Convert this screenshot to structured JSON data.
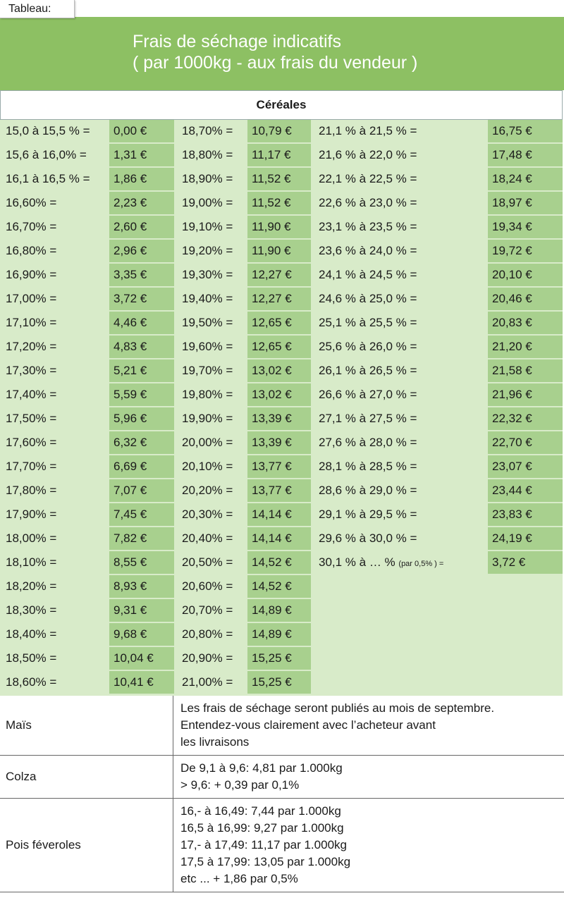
{
  "tag": "Tableau:",
  "header": {
    "line1": "Frais de séchage indicatifs",
    "line2": "( par 1000kg - aux frais du vendeur )"
  },
  "section_title": "Céréales",
  "rows": [
    {
      "a": "15,0 à 15,5 % =",
      "av": "0,00 €",
      "b": "18,70% =",
      "bv": "10,79 €",
      "c": "21,1 % à 21,5 % =",
      "cv": "16,75 €"
    },
    {
      "a": "15,6 à 16,0% =",
      "av": "1,31 €",
      "b": "18,80% =",
      "bv": "11,17 €",
      "c": "21,6 % à 22,0 % =",
      "cv": "17,48 €"
    },
    {
      "a": "16,1 à 16,5 % =",
      "av": "1,86 €",
      "b": "18,90% =",
      "bv": "11,52 €",
      "c": "22,1 % à 22,5 % =",
      "cv": "18,24 €"
    },
    {
      "a": "16,60% =",
      "av": "2,23 €",
      "b": "19,00% =",
      "bv": "11,52 €",
      "c": "22,6 % à 23,0 % =",
      "cv": "18,97 €"
    },
    {
      "a": "16,70% =",
      "av": "2,60 €",
      "b": "19,10% =",
      "bv": "11,90 €",
      "c": "23,1 % à 23,5 % =",
      "cv": "19,34 €"
    },
    {
      "a": "16,80% =",
      "av": "2,96 €",
      "b": "19,20% =",
      "bv": "11,90 €",
      "c": "23,6 % à 24,0 % =",
      "cv": "19,72 €"
    },
    {
      "a": "16,90% =",
      "av": "3,35 €",
      "b": "19,30% =",
      "bv": "12,27 €",
      "c": "24,1 % à 24,5 % =",
      "cv": "20,10 €"
    },
    {
      "a": "17,00% =",
      "av": "3,72 €",
      "b": "19,40% =",
      "bv": "12,27 €",
      "c": "24,6 % à 25,0 % =",
      "cv": "20,46 €"
    },
    {
      "a": "17,10% =",
      "av": "4,46 €",
      "b": "19,50% =",
      "bv": "12,65 €",
      "c": "25,1 % à 25,5 % =",
      "cv": "20,83 €"
    },
    {
      "a": "17,20% =",
      "av": "4,83 €",
      "b": "19,60% =",
      "bv": "12,65 €",
      "c": "25,6 % à 26,0 % =",
      "cv": "21,20 €"
    },
    {
      "a": "17,30% =",
      "av": "5,21 €",
      "b": "19,70% =",
      "bv": "13,02 €",
      "c": "26,1 % à 26,5 % =",
      "cv": "21,58 €"
    },
    {
      "a": "17,40% =",
      "av": "5,59 €",
      "b": "19,80% =",
      "bv": "13,02 €",
      "c": "26,6 % à 27,0 % =",
      "cv": "21,96 €"
    },
    {
      "a": "17,50% =",
      "av": "5,96 €",
      "b": "19,90% =",
      "bv": "13,39 €",
      "c": "27,1 % à 27,5 % =",
      "cv": "22,32 €"
    },
    {
      "a": "17,60% =",
      "av": "6,32 €",
      "b": "20,00% =",
      "bv": "13,39 €",
      "c": "27,6 % à 28,0 % =",
      "cv": "22,70 €"
    },
    {
      "a": "17,70% =",
      "av": "6,69 €",
      "b": "20,10% =",
      "bv": "13,77 €",
      "c": "28,1 % à 28,5 % =",
      "cv": "23,07 €"
    },
    {
      "a": "17,80% =",
      "av": "7,07 €",
      "b": "20,20% =",
      "bv": "13,77 €",
      "c": "28,6 % à 29,0 % =",
      "cv": "23,44 €"
    },
    {
      "a": "17,90% =",
      "av": "7,45 €",
      "b": "20,30% =",
      "bv": "14,14 €",
      "c": "29,1 % à 29,5 % =",
      "cv": "23,83 €"
    },
    {
      "a": "18,00% =",
      "av": "7,82 €",
      "b": "20,40% =",
      "bv": "14,14 €",
      "c": "29,6 % à 30,0 % =",
      "cv": "24,19 €"
    },
    {
      "a": "18,10% =",
      "av": "8,55 €",
      "b": "20,50% =",
      "bv": "14,52 €",
      "c": "30,1 % à … %",
      "c_small": "(par 0,5% ) =",
      "cv": "3,72 €"
    },
    {
      "a": "18,20% =",
      "av": "8,93 €",
      "b": "20,60% =",
      "bv": "14,52 €"
    },
    {
      "a": "18,30% =",
      "av": "9,31 €",
      "b": "20,70% =",
      "bv": "14,89 €"
    },
    {
      "a": "18,40% =",
      "av": "9,68 €",
      "b": "20,80% =",
      "bv": "14,89 €"
    },
    {
      "a": "18,50% =",
      "av": "10,04 €",
      "b": "20,90% =",
      "bv": "15,25 €"
    },
    {
      "a": "18,60% =",
      "av": "10,41 €",
      "b": "21,00% =",
      "bv": "15,25 €"
    }
  ],
  "bottom": [
    {
      "name": "Maïs",
      "lines": [
        "Les frais de séchage seront publiés au mois de septembre.",
        "Entendez-vous clairement avec l’acheteur avant",
        "les livraisons"
      ]
    },
    {
      "name": "Colza",
      "lines": [
        "De 9,1 à 9,6: 4,81 par 1.000kg",
        "> 9,6: + 0,39 par 0,1%"
      ]
    },
    {
      "name": "Pois féveroles",
      "lines": [
        "16,- à 16,49: 7,44 par 1.000kg",
        "16,5 à 16,99: 9,27 par 1.000kg",
        "17,- à 17,49: 11,17 par 1.000kg",
        "17,5 à 17,99: 13,05 par 1.000kg",
        "etc ... + 1,86 par 0,5%"
      ]
    }
  ]
}
